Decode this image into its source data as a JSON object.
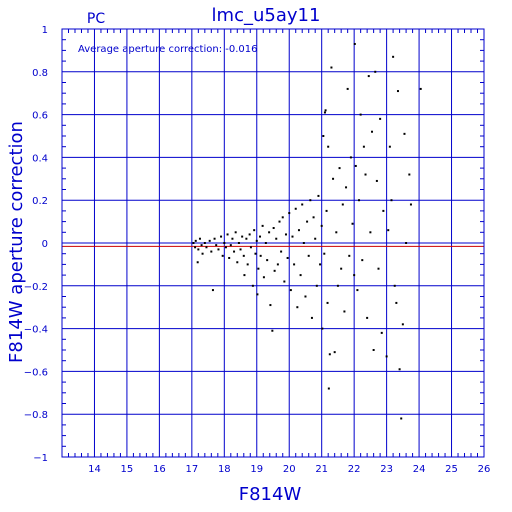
{
  "chart_data": {
    "type": "scatter",
    "title": "lmc_u5ay11",
    "corner_label": "PC",
    "annotation": "Average aperture correction: -0.016",
    "xlabel": "F814W",
    "ylabel": "F814W aperture correction",
    "xlim": [
      13,
      26
    ],
    "ylim": [
      -1,
      1
    ],
    "x_ticks": [
      14,
      15,
      16,
      17,
      18,
      19,
      20,
      21,
      22,
      23,
      24,
      25,
      26
    ],
    "y_ticks": [
      -1,
      -0.8,
      -0.6,
      -0.4,
      -0.2,
      0,
      0.2,
      0.4,
      0.6,
      0.8,
      1
    ],
    "y_tick_labels": [
      "−1",
      "−0.8",
      "−0.6",
      "−0.4",
      "−0.2",
      "0",
      "0.2",
      "0.4",
      "0.6",
      "0.8",
      "1"
    ],
    "grid": true,
    "reference_lines": [
      {
        "name": "zero",
        "y": 0,
        "color": "#0000cc"
      },
      {
        "name": "average",
        "y": -0.016,
        "color": "#cc0000"
      }
    ],
    "colors": {
      "axes": "#0000cc",
      "points": "#000000",
      "average_line": "#cc0000",
      "zero_line": "#0000cc"
    },
    "points": [
      [
        17.05,
        0.0
      ],
      [
        17.1,
        -0.02
      ],
      [
        17.12,
        0.01
      ],
      [
        17.18,
        -0.09
      ],
      [
        17.2,
        -0.03
      ],
      [
        17.25,
        0.02
      ],
      [
        17.3,
        -0.01
      ],
      [
        17.33,
        -0.05
      ],
      [
        17.4,
        0.0
      ],
      [
        17.45,
        -0.02
      ],
      [
        17.55,
        0.01
      ],
      [
        17.6,
        -0.04
      ],
      [
        17.65,
        -0.22
      ],
      [
        17.7,
        0.02
      ],
      [
        17.75,
        -0.01
      ],
      [
        17.82,
        -0.03
      ],
      [
        17.9,
        0.03
      ],
      [
        17.95,
        -0.06
      ],
      [
        18.0,
        0.0
      ],
      [
        18.05,
        -0.02
      ],
      [
        18.1,
        0.04
      ],
      [
        18.15,
        -0.07
      ],
      [
        18.2,
        -0.01
      ],
      [
        18.25,
        0.02
      ],
      [
        18.3,
        -0.04
      ],
      [
        18.35,
        0.05
      ],
      [
        18.4,
        -0.09
      ],
      [
        18.45,
        0.0
      ],
      [
        18.5,
        -0.03
      ],
      [
        18.55,
        0.03
      ],
      [
        18.6,
        -0.06
      ],
      [
        18.62,
        -0.15
      ],
      [
        18.68,
        0.02
      ],
      [
        18.72,
        -0.1
      ],
      [
        18.78,
        0.04
      ],
      [
        18.82,
        -0.02
      ],
      [
        18.88,
        -0.2
      ],
      [
        18.92,
        0.06
      ],
      [
        18.96,
        -0.05
      ],
      [
        19.0,
        0.01
      ],
      [
        19.02,
        -0.24
      ],
      [
        19.05,
        -0.12
      ],
      [
        19.1,
        0.03
      ],
      [
        19.12,
        -0.06
      ],
      [
        19.18,
        0.08
      ],
      [
        19.22,
        -0.16
      ],
      [
        19.28,
        0.0
      ],
      [
        19.32,
        -0.08
      ],
      [
        19.38,
        0.05
      ],
      [
        19.42,
        -0.29
      ],
      [
        19.48,
        -0.41
      ],
      [
        19.52,
        0.07
      ],
      [
        19.55,
        -0.13
      ],
      [
        19.6,
        0.02
      ],
      [
        19.65,
        -0.1
      ],
      [
        19.7,
        0.1
      ],
      [
        19.75,
        -0.04
      ],
      [
        19.8,
        0.12
      ],
      [
        19.85,
        -0.18
      ],
      [
        19.9,
        0.04
      ],
      [
        19.95,
        -0.07
      ],
      [
        20.0,
        0.14
      ],
      [
        20.05,
        -0.22
      ],
      [
        20.1,
        0.03
      ],
      [
        20.15,
        -0.1
      ],
      [
        20.2,
        0.16
      ],
      [
        20.25,
        -0.3
      ],
      [
        20.3,
        0.06
      ],
      [
        20.35,
        -0.15
      ],
      [
        20.4,
        0.18
      ],
      [
        20.45,
        0.0
      ],
      [
        20.5,
        -0.25
      ],
      [
        20.55,
        0.1
      ],
      [
        20.6,
        -0.06
      ],
      [
        20.65,
        0.2
      ],
      [
        20.7,
        -0.35
      ],
      [
        20.75,
        0.12
      ],
      [
        20.8,
        0.02
      ],
      [
        20.85,
        -0.2
      ],
      [
        20.9,
        0.22
      ],
      [
        20.95,
        -0.1
      ],
      [
        21.0,
        0.08
      ],
      [
        21.02,
        -0.4
      ],
      [
        21.05,
        0.5
      ],
      [
        21.08,
        -0.05
      ],
      [
        21.1,
        0.61
      ],
      [
        21.12,
        0.62
      ],
      [
        21.15,
        0.15
      ],
      [
        21.18,
        -0.28
      ],
      [
        21.2,
        0.45
      ],
      [
        21.22,
        -0.68
      ],
      [
        21.25,
        -0.52
      ],
      [
        21.3,
        0.82
      ],
      [
        21.35,
        0.3
      ],
      [
        21.4,
        -0.51
      ],
      [
        21.45,
        0.05
      ],
      [
        21.5,
        -0.2
      ],
      [
        21.55,
        0.35
      ],
      [
        21.6,
        -0.12
      ],
      [
        21.65,
        0.18
      ],
      [
        21.7,
        -0.32
      ],
      [
        21.75,
        0.26
      ],
      [
        21.8,
        0.72
      ],
      [
        21.85,
        -0.06
      ],
      [
        21.9,
        0.4
      ],
      [
        21.95,
        0.09
      ],
      [
        22.0,
        -0.15
      ],
      [
        22.02,
        0.93
      ],
      [
        22.05,
        0.36
      ],
      [
        22.1,
        -0.22
      ],
      [
        22.15,
        0.2
      ],
      [
        22.2,
        0.6
      ],
      [
        22.25,
        -0.08
      ],
      [
        22.3,
        0.45
      ],
      [
        22.35,
        0.32
      ],
      [
        22.4,
        -0.35
      ],
      [
        22.45,
        0.78
      ],
      [
        22.5,
        0.05
      ],
      [
        22.55,
        0.52
      ],
      [
        22.6,
        -0.5
      ],
      [
        22.65,
        0.8
      ],
      [
        22.7,
        0.29
      ],
      [
        22.75,
        -0.12
      ],
      [
        22.8,
        0.58
      ],
      [
        22.85,
        -0.42
      ],
      [
        22.9,
        0.15
      ],
      [
        23.0,
        -0.53
      ],
      [
        23.05,
        0.06
      ],
      [
        23.1,
        0.45
      ],
      [
        23.15,
        0.2
      ],
      [
        23.2,
        0.87
      ],
      [
        23.25,
        -0.2
      ],
      [
        23.3,
        -0.28
      ],
      [
        23.35,
        0.71
      ],
      [
        23.4,
        -0.59
      ],
      [
        23.45,
        -0.82
      ],
      [
        23.5,
        -0.38
      ],
      [
        23.55,
        0.51
      ],
      [
        23.6,
        -0.0
      ],
      [
        23.7,
        0.32
      ],
      [
        23.75,
        0.18
      ],
      [
        24.05,
        0.72
      ]
    ]
  }
}
